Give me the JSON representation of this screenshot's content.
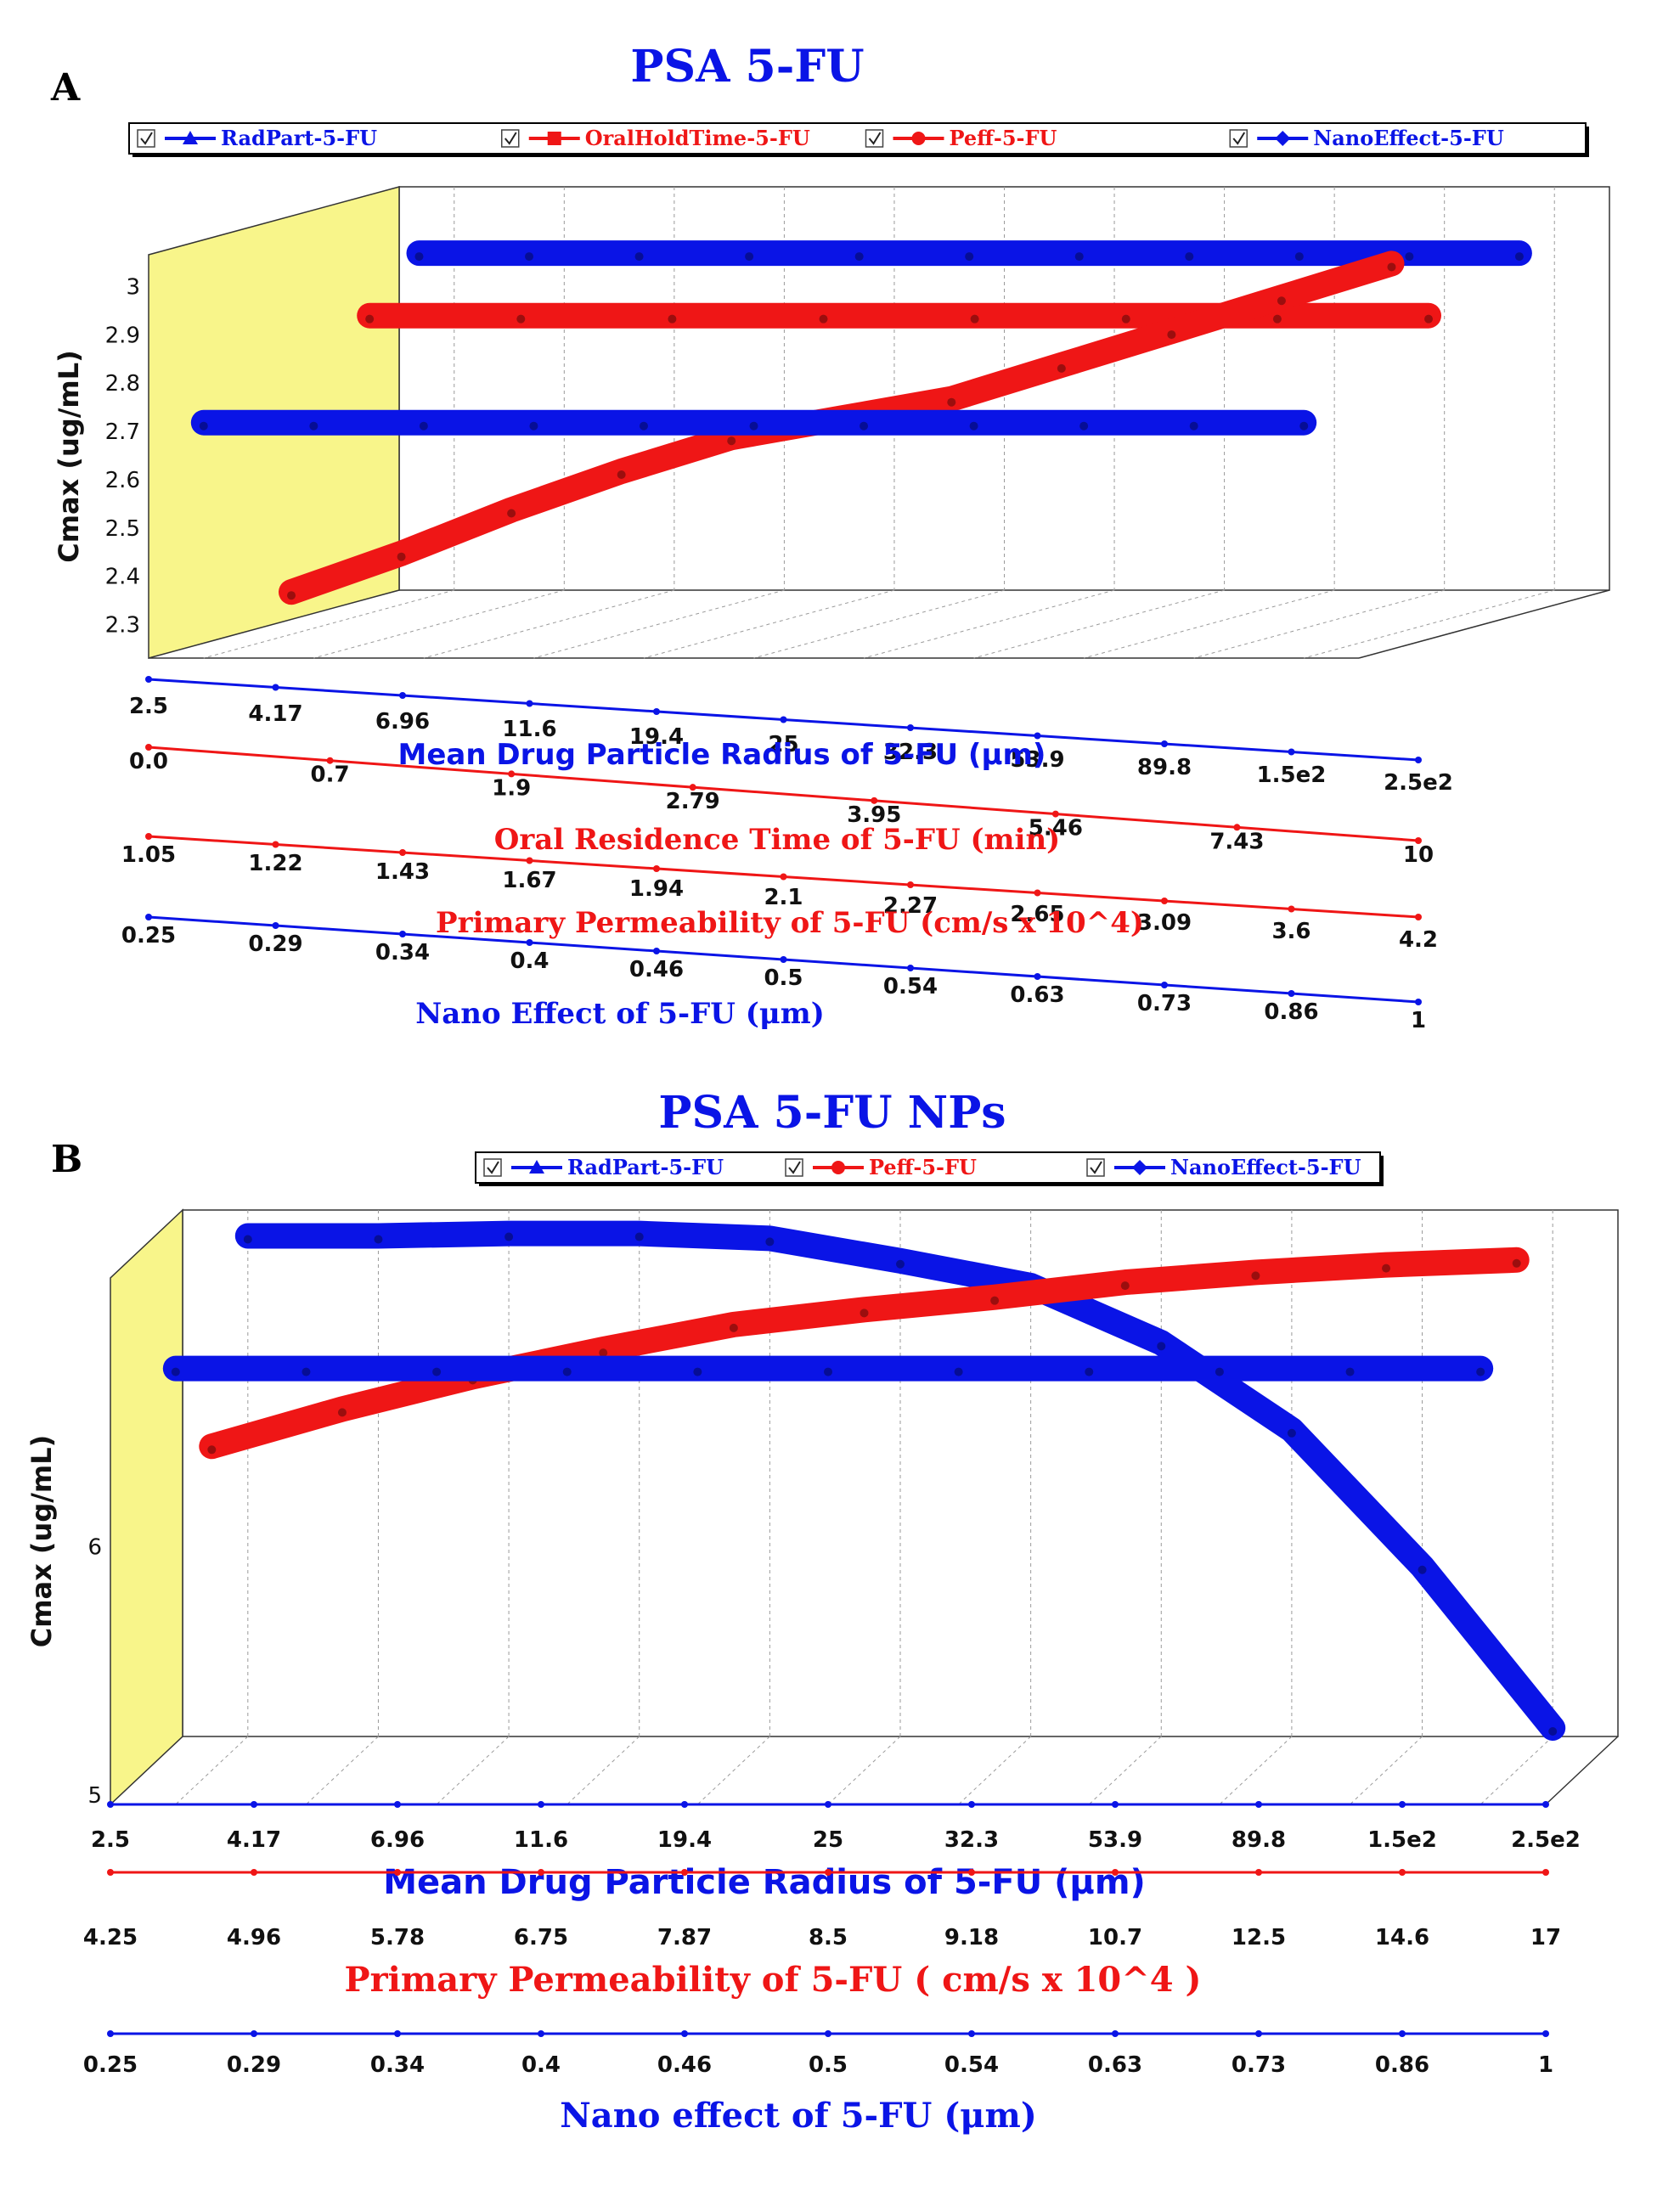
{
  "colors": {
    "blue": "#0a14e6",
    "red": "#ef1616",
    "yellow": "#f8f58a",
    "grid": "#9a9a9a",
    "axis": "#1a1a1a"
  },
  "chart_data": [
    {
      "panel": "A",
      "type": "line",
      "title": "PSA 5-FU",
      "ylabel": "Cmax (ug/mL)",
      "ylim": [
        2.25,
        3.05
      ],
      "yticks": [
        "3",
        "2.9",
        "2.8",
        "2.7",
        "2.6",
        "2.5",
        "2.4",
        "2.3"
      ],
      "legend": [
        {
          "name": "RadPart-5-FU",
          "color": "blue",
          "marker": "triangle"
        },
        {
          "name": "OralHoldTime-5-FU",
          "color": "red",
          "marker": "square"
        },
        {
          "name": "Peff-5-FU",
          "color": "red",
          "marker": "circle"
        },
        {
          "name": "NanoEffect-5-FU",
          "color": "blue",
          "marker": "diamond"
        }
      ],
      "axes": [
        {
          "label": "Mean Drug Particle Radius of 5-FU (μm)",
          "color": "blue",
          "ticks": [
            "2.5",
            "4.17",
            "6.96",
            "11.6",
            "19.4",
            "25",
            "32.3",
            "53.9",
            "89.8",
            "1.5e2",
            "2.5e2"
          ]
        },
        {
          "label": "Oral Residence Time of 5-FU (min)",
          "color": "red",
          "ticks": [
            "0.0",
            "0.7",
            "1.9",
            "2.79",
            "3.95",
            "5.46",
            "7.43",
            "10"
          ]
        },
        {
          "label": "Primary Permeability of 5-FU (cm/s x 10^4)",
          "color": "red",
          "ticks": [
            "1.05",
            "1.22",
            "1.43",
            "1.67",
            "1.94",
            "2.1",
            "2.27",
            "2.65",
            "3.09",
            "3.6",
            "4.2"
          ]
        },
        {
          "label": "Nano Effect of 5-FU (μm)",
          "color": "blue",
          "ticks": [
            "0.25",
            "0.29",
            "0.34",
            "0.4",
            "0.46",
            "0.5",
            "0.54",
            "0.63",
            "0.73",
            "0.86",
            "1"
          ]
        }
      ],
      "series": [
        {
          "name": "RadPart-5-FU",
          "depth": 3,
          "values": [
            2.95,
            2.95,
            2.95,
            2.95,
            2.95,
            2.95,
            2.95,
            2.95,
            2.95,
            2.95,
            2.95
          ]
        },
        {
          "name": "OralHoldTime-5-FU",
          "depth": 2,
          "values": [
            2.86,
            2.86,
            2.86,
            2.86,
            2.86,
            2.86,
            2.86,
            2.86
          ]
        },
        {
          "name": "Peff-5-FU",
          "depth": 1,
          "values": [
            2.32,
            2.4,
            2.49,
            2.57,
            2.64,
            2.68,
            2.72,
            2.79,
            2.86,
            2.93,
            3.0
          ]
        },
        {
          "name": "NanoEffect-5-FU",
          "depth": 0,
          "values": [
            2.72,
            2.72,
            2.72,
            2.72,
            2.72,
            2.72,
            2.72,
            2.72,
            2.72,
            2.72,
            2.72
          ]
        }
      ]
    },
    {
      "panel": "B",
      "type": "line",
      "title": "PSA 5-FU NPs",
      "ylabel": "Cmax (ug/mL)",
      "ylim": [
        5.0,
        7.05
      ],
      "yticks": [
        "6",
        "5"
      ],
      "legend": [
        {
          "name": "RadPart-5-FU",
          "color": "blue",
          "marker": "triangle"
        },
        {
          "name": "Peff-5-FU",
          "color": "red",
          "marker": "circle"
        },
        {
          "name": "NanoEffect-5-FU",
          "color": "blue",
          "marker": "diamond"
        }
      ],
      "axes": [
        {
          "label": "Mean Drug Particle Radius of 5-FU (μm)",
          "color": "blue",
          "ticks": [
            "2.5",
            "4.17",
            "6.96",
            "11.6",
            "19.4",
            "25",
            "32.3",
            "53.9",
            "89.8",
            "1.5e2",
            "2.5e2"
          ]
        },
        {
          "label": "Primary Permeability of 5-FU ( cm/s x 10^4 )",
          "color": "red",
          "ticks": [
            "4.25",
            "4.96",
            "5.78",
            "6.75",
            "7.87",
            "8.5",
            "9.18",
            "10.7",
            "12.5",
            "14.6",
            "17"
          ]
        },
        {
          "label": "Nano effect of 5-FU (μm)",
          "color": "blue",
          "ticks": [
            "0.25",
            "0.29",
            "0.34",
            "0.4",
            "0.46",
            "0.5",
            "0.54",
            "0.63",
            "0.73",
            "0.86",
            "1"
          ]
        }
      ],
      "series": [
        {
          "name": "RadPart-5-FU",
          "depth": 2,
          "values": [
            6.98,
            6.98,
            6.99,
            6.99,
            6.97,
            6.88,
            6.78,
            6.55,
            6.2,
            5.65,
            5.0
          ]
        },
        {
          "name": "Peff-5-FU",
          "depth": 1,
          "values": [
            6.27,
            6.42,
            6.55,
            6.66,
            6.76,
            6.82,
            6.87,
            6.93,
            6.97,
            7.0,
            7.02
          ]
        },
        {
          "name": "NanoEffect-5-FU",
          "depth": 0,
          "values": [
            6.72,
            6.72,
            6.72,
            6.72,
            6.72,
            6.72,
            6.72,
            6.72,
            6.72,
            6.72,
            6.72
          ]
        }
      ]
    }
  ]
}
